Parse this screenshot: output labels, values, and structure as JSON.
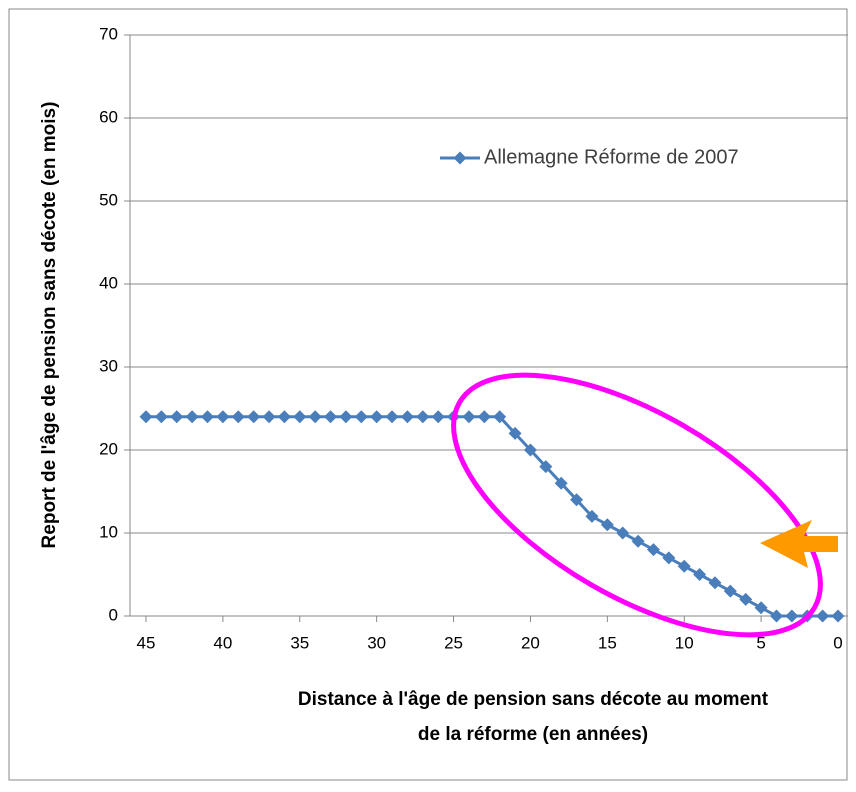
{
  "chart_data": {
    "type": "line",
    "x": [
      45,
      44,
      43,
      42,
      41,
      40,
      39,
      38,
      37,
      36,
      35,
      34,
      33,
      32,
      31,
      30,
      29,
      28,
      27,
      26,
      25,
      24,
      23,
      22,
      21,
      20,
      19,
      18,
      17,
      16,
      15,
      14,
      13,
      12,
      11,
      10,
      9,
      8,
      7,
      6,
      5,
      4,
      3,
      2,
      1,
      0
    ],
    "series": [
      {
        "name": "Allemagne Réforme de 2007",
        "color": "#4a7ebb",
        "values": [
          24,
          24,
          24,
          24,
          24,
          24,
          24,
          24,
          24,
          24,
          24,
          24,
          24,
          24,
          24,
          24,
          24,
          24,
          24,
          24,
          24,
          24,
          24,
          24,
          22,
          20,
          18,
          16,
          14,
          12,
          11,
          10,
          9,
          8,
          7,
          6,
          5,
          4,
          3,
          2,
          1,
          0,
          0,
          0,
          0,
          0
        ]
      }
    ],
    "xlim": [
      45,
      0
    ],
    "xticks": [
      45,
      40,
      35,
      30,
      25,
      20,
      15,
      10,
      5,
      0
    ],
    "ylim": [
      0,
      70
    ],
    "yticks": [
      0,
      10,
      20,
      30,
      40,
      50,
      60,
      70
    ],
    "grid": true,
    "ylabel": "Report de l'âge de pension sans décote (en mois)",
    "xlabel": [
      "Distance à l'âge de pension sans décote au moment",
      "de la réforme (en années)"
    ]
  }
}
